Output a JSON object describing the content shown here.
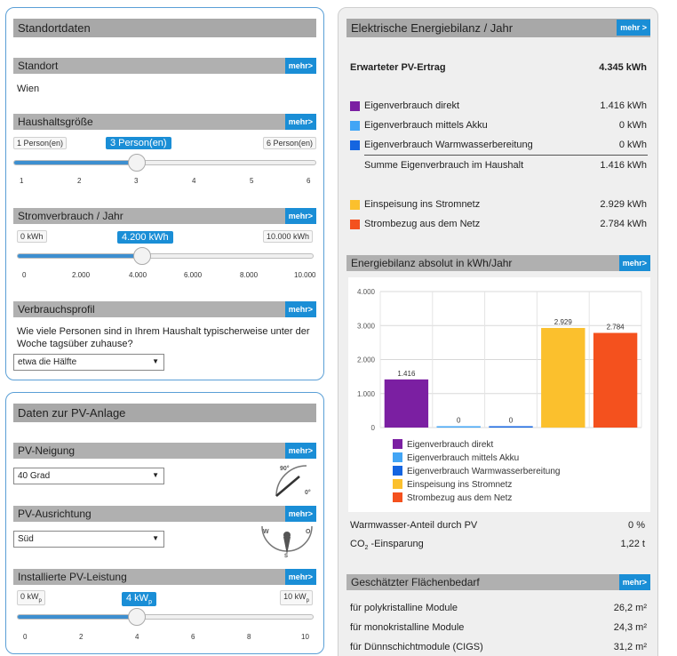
{
  "standortdaten": {
    "title": "Standortdaten",
    "standort": {
      "label": "Standort",
      "mehr": "mehr>",
      "value": "Wien"
    },
    "haushalt": {
      "label": "Haushaltsgröße",
      "mehr": "mehr>",
      "min_label": "1 Person(en)",
      "max_label": "6 Person(en)",
      "current": "3 Person(en)",
      "value": 3,
      "min": 1,
      "max": 6,
      "ticks": [
        "1",
        "2",
        "3",
        "4",
        "5",
        "6"
      ]
    },
    "strom": {
      "label": "Stromverbrauch / Jahr",
      "mehr": "mehr>",
      "min_label": "0 kWh",
      "max_label": "10.000 kWh",
      "current": "4.200 kWh",
      "value": 4200,
      "min": 0,
      "max": 10000,
      "ticks": [
        "0",
        "2.000",
        "4.000",
        "6.000",
        "8.000",
        "10.000"
      ]
    },
    "profil": {
      "label": "Verbrauchsprofil",
      "mehr": "mehr>",
      "question_line1": "Wie viele Personen sind in Ihrem Haushalt typischerweise unter der",
      "question_line2": "Woche tagsüber zuhause?",
      "selected": "etwa die Hälfte"
    }
  },
  "pv_anlage": {
    "title": "Daten zur PV-Anlage",
    "neigung": {
      "label": "PV-Neigung",
      "mehr": "mehr>",
      "selected": "40 Grad",
      "icon_top": "90°",
      "icon_bottom": "0°"
    },
    "ausrichtung": {
      "label": "PV-Ausrichtung",
      "mehr": "mehr>",
      "selected": "Süd",
      "compass_w": "W",
      "compass_o": "O",
      "compass_s": "S"
    },
    "leistung": {
      "label": "Installierte PV-Leistung",
      "mehr": "mehr>",
      "min_label": "0 kW",
      "max_label": "10 kW",
      "unit_sub": "p",
      "current": "4 kW",
      "value": 4,
      "min": 0,
      "max": 10,
      "ticks": [
        "0",
        "2",
        "4",
        "6",
        "8",
        "10"
      ]
    }
  },
  "bilanz": {
    "title": "Elektrische Energiebilanz / Jahr",
    "mehr": "mehr >",
    "ertrag_label": "Erwarteter PV-Ertrag",
    "ertrag_value": "4.345 kWh",
    "rows": [
      {
        "label": "Eigenverbrauch direkt",
        "value": "1.416 kWh",
        "color": "#7b1fa2"
      },
      {
        "label": "Eigenverbrauch mittels Akku",
        "value": "0 kWh",
        "color": "#42a5f5"
      },
      {
        "label": "Eigenverbrauch Warmwasserbereitung",
        "value": "0 kWh",
        "color": "#1565e0"
      }
    ],
    "summe_label": "Summe Eigenverbrauch im Haushalt",
    "summe_value": "1.416 kWh",
    "rows2": [
      {
        "label": "Einspeisung ins Stromnetz",
        "value": "2.929 kWh",
        "color": "#fbc02d"
      },
      {
        "label": "Strombezug aus dem Netz",
        "value": "2.784 kWh",
        "color": "#f4511e"
      }
    ],
    "chart_title": "Energiebilanz absolut in kWh/Jahr",
    "chart_mehr": "mehr>",
    "warmwasser_label": "Warmwasser-Anteil durch PV",
    "warmwasser_value": "0 %",
    "co2_label_pre": "CO",
    "co2_label_sub": "2",
    "co2_label_post": " -Einsparung",
    "co2_value": "1,22 t",
    "flaeche": {
      "title": "Geschätzter Flächenbedarf",
      "mehr": "mehr>",
      "rows": [
        {
          "label": "für polykristalline Module",
          "value": "26,2 m²"
        },
        {
          "label": "für monokristalline Module",
          "value": "24,3 m²"
        },
        {
          "label": "für Dünnschichtmodule (CIGS)",
          "value": "31,2 m²"
        }
      ]
    }
  },
  "chart_data": {
    "type": "bar",
    "categories": [
      "Eigenverbrauch direkt",
      "Eigenverbrauch mittels Akku",
      "Eigenverbrauch Warmwasserbereitung",
      "Einspeisung ins Stromnetz",
      "Strombezug aus dem Netz"
    ],
    "values": [
      1416,
      0,
      0,
      2929,
      2784
    ],
    "data_labels": [
      "1.416",
      "0",
      "0",
      "2.929",
      "2.784"
    ],
    "colors": [
      "#7b1fa2",
      "#42a5f5",
      "#1565e0",
      "#fbc02d",
      "#f4511e"
    ],
    "ylim": [
      0,
      4000
    ],
    "yticks": [
      0,
      1000,
      2000,
      3000,
      4000
    ],
    "ytick_labels": [
      "0",
      "1.000",
      "2.000",
      "3.000",
      "4.000"
    ],
    "grid": true,
    "legend": "bottom",
    "title": "Energiebilanz absolut in kWh/Jahr",
    "xlabel": "",
    "ylabel": ""
  }
}
